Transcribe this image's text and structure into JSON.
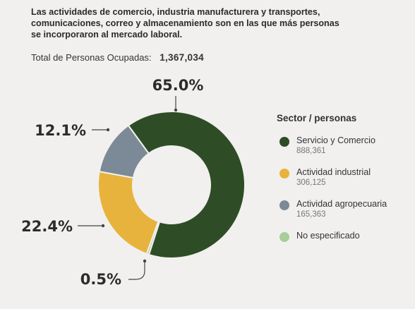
{
  "headline": [
    "Las actividades de comercio, industria manufacturera y transportes,",
    "comunicaciones, correo y almacenamiento son en las que más personas",
    "se incorporaron al mercado laboral."
  ],
  "total": {
    "label": "Total de Personas Ocupadas:",
    "value": "1,367,034"
  },
  "legend_title": "Sector / personas",
  "chart_data": {
    "type": "pie",
    "donut": true,
    "legend_placement": "right",
    "slices": [
      {
        "name": "Servicio y Comercio",
        "value": 888361,
        "value_label": "888,361",
        "pct_label": "65.0%",
        "color": "#2e4d26"
      },
      {
        "name": "No especificado",
        "value": 7185,
        "value_label": "",
        "pct_label": "0.5%",
        "color": "#a6cf9a"
      },
      {
        "name": "Actividad industrial",
        "value": 306125,
        "value_label": "306,125",
        "pct_label": "22.4%",
        "color": "#e8b33c"
      },
      {
        "name": "Actividad agropecuaria",
        "value": 165363,
        "value_label": "165,363",
        "pct_label": "12.1%",
        "color": "#7b8a96"
      }
    ],
    "legend_order": [
      0,
      2,
      3,
      1
    ]
  }
}
